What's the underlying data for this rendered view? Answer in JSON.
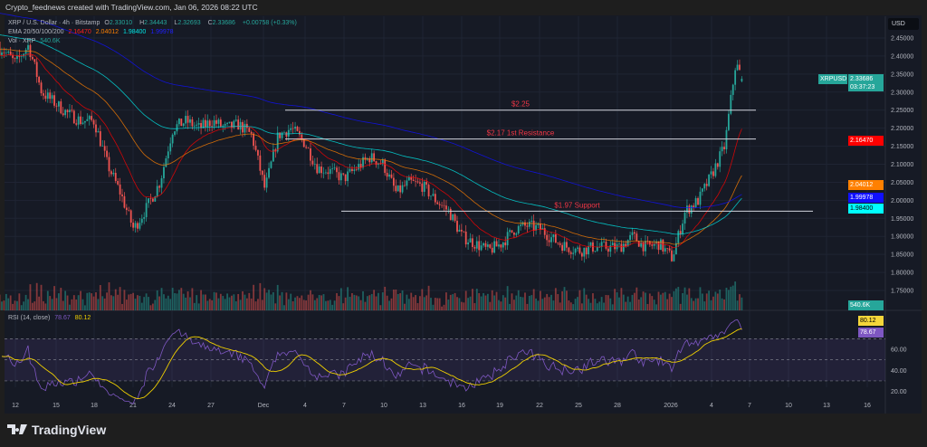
{
  "credit": "Crypto_feednews created with TradingView.com, Jan 06, 2026 08:22 UTC",
  "legend": {
    "symbol": "XRP / U.S. Dollar · 4h · Bitstamp",
    "open_label": "O",
    "open": "2.33010",
    "high_label": "H",
    "high": "2.34443",
    "low_label": "L",
    "low": "2.32693",
    "close_label": "C",
    "close": "2.33686",
    "change": "+0.00758 (+0.33%)",
    "ema_label": "EMA 20/50/100/200",
    "ema20": "2.16470",
    "ema50": "2.04012",
    "ema100": "1.98400",
    "ema200": "1.99978",
    "vol_label": "Vol · XRP",
    "vol": "540.6K",
    "rsi_label": "RSI (14, close)",
    "rsi": "78.67",
    "rsi_ma": "80.12"
  },
  "price_axis": {
    "currency": "USD",
    "symbol_tag": "XRPUSD",
    "last_price": "2.33686",
    "countdown": "03:37:23",
    "ema20_tag": "2.16470",
    "ema50_tag": "2.04012",
    "ema200_tag": "1.99978",
    "ema100_tag": "1.98400",
    "vol_tag": "540.6K",
    "rsi_ma_tag": "80.12",
    "rsi_tag": "78.67"
  },
  "colors": {
    "up": "#26a69a",
    "down": "#ef5350",
    "ema20": "#ff0000",
    "ema50": "#ff8000",
    "ema100": "#00e5e5",
    "ema200": "#1010ff",
    "rsi": "#7e57c2",
    "rsi_ma": "#f0d000",
    "annotation": "#f23645",
    "background": "#161a25"
  },
  "logo": "TradingView",
  "chart_data": {
    "type": "candlestick",
    "timeframe": "4h",
    "ylim": [
      1.72,
      2.48
    ],
    "yticks": [
      "2.45000",
      "2.40000",
      "2.35000",
      "2.30000",
      "2.25000",
      "2.20000",
      "2.15000",
      "2.10000",
      "2.05000",
      "2.00000",
      "1.95000",
      "1.90000",
      "1.85000",
      "1.80000",
      "1.75000"
    ],
    "xticks": [
      "12",
      "15",
      "18",
      "21",
      "24",
      "27",
      "Dec",
      "4",
      "7",
      "10",
      "13",
      "16",
      "19",
      "22",
      "25",
      "28",
      "2026",
      "4",
      "7",
      "10",
      "13",
      "16"
    ],
    "rsi_ticks": [
      "60.00",
      "40.00",
      "20.00"
    ],
    "rsi_bands": [
      70,
      50,
      30
    ],
    "approx_closes": [
      [
        "Nov 11",
        2.42
      ],
      [
        "Nov 12",
        2.38
      ],
      [
        "Nov 13",
        2.43
      ],
      [
        "Nov 14",
        2.3
      ],
      [
        "Nov 15",
        2.27
      ],
      [
        "Nov 16",
        2.24
      ],
      [
        "Nov 17",
        2.22
      ],
      [
        "Nov 18",
        2.22
      ],
      [
        "Nov 19",
        2.1
      ],
      [
        "Nov 20",
        2.02
      ],
      [
        "Nov 21",
        1.92
      ],
      [
        "Nov 22",
        1.98
      ],
      [
        "Nov 23",
        2.05
      ],
      [
        "Nov 24",
        2.2
      ],
      [
        "Nov 25",
        2.22
      ],
      [
        "Nov 26",
        2.2
      ],
      [
        "Nov 27",
        2.22
      ],
      [
        "Nov 28",
        2.2
      ],
      [
        "Nov 29",
        2.21
      ],
      [
        "Nov 30",
        2.18
      ],
      [
        "Dec 1",
        2.03
      ],
      [
        "Dec 2",
        2.18
      ],
      [
        "Dec 3",
        2.2
      ],
      [
        "Dec 4",
        2.16
      ],
      [
        "Dec 5",
        2.09
      ],
      [
        "Dec 6",
        2.08
      ],
      [
        "Dec 7",
        2.06
      ],
      [
        "Dec 8",
        2.09
      ],
      [
        "Dec 9",
        2.12
      ],
      [
        "Dec 10",
        2.1
      ],
      [
        "Dec 11",
        2.02
      ],
      [
        "Dec 12",
        2.05
      ],
      [
        "Dec 13",
        2.04
      ],
      [
        "Dec 14",
        2.0
      ],
      [
        "Dec 15",
        1.97
      ],
      [
        "Dec 16",
        1.9
      ],
      [
        "Dec 17",
        1.88
      ],
      [
        "Dec 18",
        1.86
      ],
      [
        "Dec 19",
        1.88
      ],
      [
        "Dec 20",
        1.92
      ],
      [
        "Dec 21",
        1.93
      ],
      [
        "Dec 22",
        1.92
      ],
      [
        "Dec 23",
        1.89
      ],
      [
        "Dec 24",
        1.87
      ],
      [
        "Dec 25",
        1.86
      ],
      [
        "Dec 26",
        1.87
      ],
      [
        "Dec 27",
        1.87
      ],
      [
        "Dec 28",
        1.87
      ],
      [
        "Dec 29",
        1.9
      ],
      [
        "Dec 30",
        1.87
      ],
      [
        "Dec 31",
        1.88
      ],
      [
        "Jan 1",
        1.84
      ],
      [
        "Jan 2",
        1.97
      ],
      [
        "Jan 3",
        2.0
      ],
      [
        "Jan 4",
        2.07
      ],
      [
        "Jan 5",
        2.15
      ],
      [
        "Jan 5 20:00",
        2.38
      ],
      [
        "Jan 6",
        2.33686
      ]
    ],
    "annotations": [
      {
        "label": "$2.25",
        "price": 2.25
      },
      {
        "label": "$2.17 1st Resistance",
        "price": 2.17
      },
      {
        "label": "$1.97 Support",
        "price": 1.97
      }
    ]
  }
}
